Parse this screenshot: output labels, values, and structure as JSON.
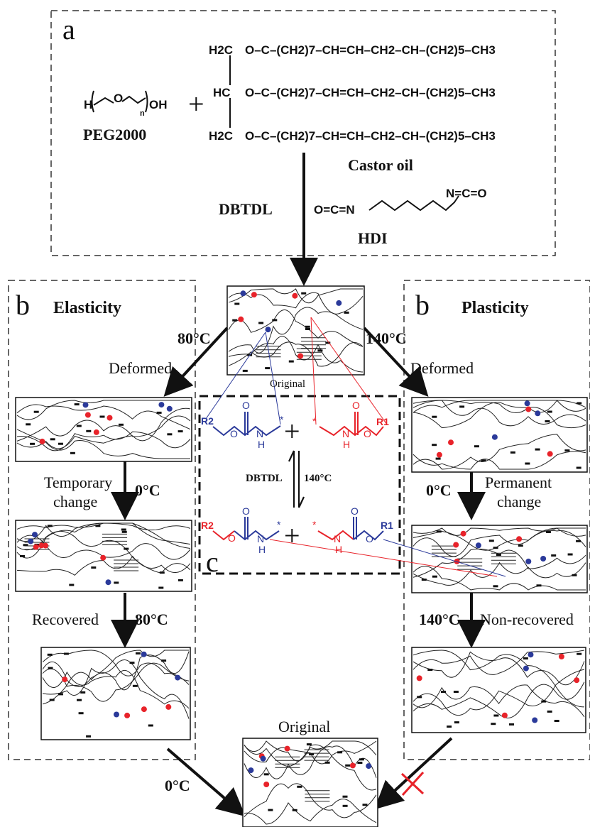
{
  "panels": {
    "a_letter": "a",
    "b_left_letter": "b",
    "b_right_letter": "b",
    "c_letter": "c"
  },
  "reactants": {
    "peg_label": "PEG2000",
    "peg_h": "H",
    "peg_o": "O",
    "peg_n": "n",
    "peg_oh": "OH",
    "plus": "+",
    "castor_label": "Castor  oil",
    "castor_rows": [
      {
        "left": "H2C",
        "chain": "O–C–(CH2)7–CH=CH–CH2–CH–(CH2)5–CH3"
      },
      {
        "left": "HC",
        "chain": "O–C–(CH2)7–CH=CH–CH2–CH–(CH2)5–CH3"
      },
      {
        "left": "H2C",
        "chain": "O–C–(CH2)7–CH=CH–CH2–CH–(CH2)5–CH3"
      }
    ],
    "catalyst": "DBTDL",
    "hdi_left": "O=C=N",
    "hdi_right": "N=C=O",
    "hdi_label": "HDI"
  },
  "elasticity": {
    "title": "Elasticity",
    "temp_top": "80°C",
    "step1": "Deformed",
    "step2_line1": "Temporary",
    "step2_line2": "change",
    "temp_cool": "0°C",
    "step3": "Recovered",
    "temp_heat": "80°C",
    "temp_final": "0°C"
  },
  "plasticity": {
    "title": "Plasticity",
    "temp_top": "140°C",
    "step1": "Deformed",
    "temp_cool": "0°C",
    "step2_line1": "Permanent",
    "step2_line2": "change",
    "temp_heat": "140°C",
    "step3": "Non-recovered"
  },
  "center": {
    "original_top": "Original",
    "original_bottom": "Original"
  },
  "exchange": {
    "catalyst": "DBTDL",
    "temp": "140°C",
    "top_left_r": "R2",
    "top_right_r": "R1",
    "bottom_left_r": "R2",
    "bottom_right_r": "R1",
    "atom_o": "O",
    "atom_n": "N",
    "atom_h": "H",
    "star": "*",
    "plus": "+"
  },
  "colors": {
    "blue": "#2b3a9a",
    "red": "#e8232a",
    "black": "#111111"
  }
}
